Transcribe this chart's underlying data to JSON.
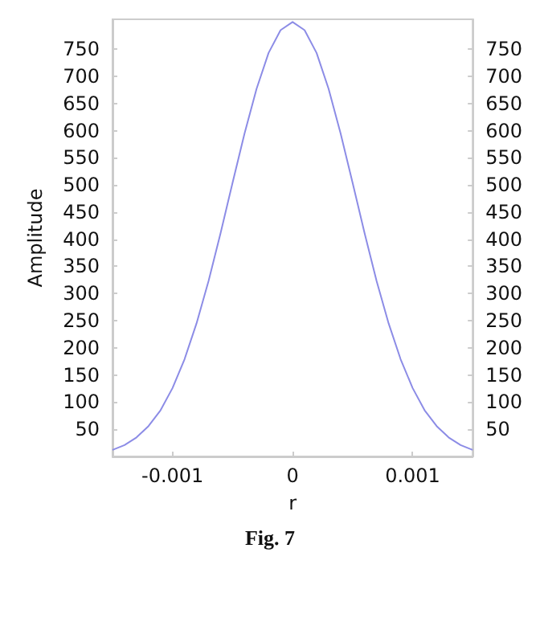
{
  "chart_data": {
    "type": "line",
    "xlabel": "r",
    "ylabel": "Amplitude",
    "annotations": [
      "Fig. 7"
    ],
    "x": [
      -0.0015,
      -0.0014,
      -0.0013,
      -0.0012,
      -0.0011,
      -0.001,
      -0.0009,
      -0.0008,
      -0.0007,
      -0.0006,
      -0.0005,
      -0.0004,
      -0.0003,
      -0.0002,
      -0.0001,
      0,
      0.0001,
      0.0002,
      0.0003,
      0.0004,
      0.0005,
      0.0006,
      0.0007,
      0.0008,
      0.0009,
      0.001,
      0.0011,
      0.0012,
      0.0013,
      0.0014,
      0.0015
    ],
    "series": [
      {
        "color": "#8c8ce6",
        "values": [
          12,
          21,
          35,
          56,
          85,
          126,
          179,
          245,
          323,
          411,
          504,
          595,
          677,
          743,
          785,
          800,
          785,
          743,
          677,
          595,
          504,
          411,
          323,
          245,
          179,
          126,
          85,
          56,
          35,
          21,
          12
        ]
      }
    ],
    "xlim": [
      -0.0015,
      0.0015
    ],
    "xticks": [
      -0.001,
      0,
      0.001
    ],
    "ylim": [
      0,
      805
    ],
    "yticks": [
      50,
      100,
      150,
      200,
      250,
      300,
      350,
      400,
      450,
      500,
      550,
      600,
      650,
      700,
      750
    ],
    "y2lim": [
      0,
      805
    ],
    "y2ticks": [
      50,
      100,
      150,
      200,
      250,
      300,
      350,
      400,
      450,
      500,
      550,
      600,
      650,
      700,
      750
    ],
    "marker": "none",
    "line_style": "solid"
  }
}
